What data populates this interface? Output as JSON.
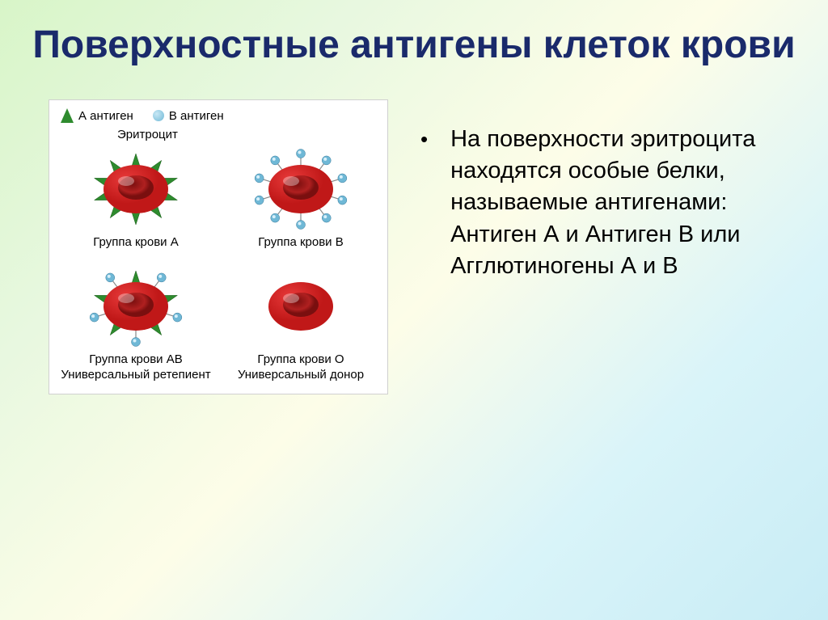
{
  "title_color": "#1a2a6b",
  "body_text_color": "#000000",
  "slide": {
    "title": "Поверхностные антигены клеток крови",
    "body": "На поверхности эритроцита находятся особые белки, называемые антигенами: Антиген А и Антиген В  или Агглютиногены А и В"
  },
  "diagram": {
    "box_bg": "#ffffff",
    "box_border": "#d0d0d0",
    "label_fontsize": 15,
    "legend": {
      "a_label": "А антиген",
      "b_label": "В антиген",
      "a_color": "#2e8b2e",
      "b_color": "#6fb8d6"
    },
    "erythrocyte_label": "Эритроцит",
    "eryth_colors": {
      "outer": "#c01818",
      "outer_hi": "#e83a3a",
      "inner": "#7a0f0f",
      "inner_hi": "#b02020"
    },
    "cells": [
      {
        "id": "A",
        "label": "Группа крови А",
        "sublabel": "",
        "spikes": "A"
      },
      {
        "id": "B",
        "label": "Группа крови В",
        "sublabel": "",
        "spikes": "B"
      },
      {
        "id": "AB",
        "label": "Группа крови АВ",
        "sublabel": "Универсальный ретепиент",
        "spikes": "AB"
      },
      {
        "id": "O",
        "label": "Группа крови О",
        "sublabel": "Универсальный донор",
        "spikes": "none"
      }
    ]
  }
}
